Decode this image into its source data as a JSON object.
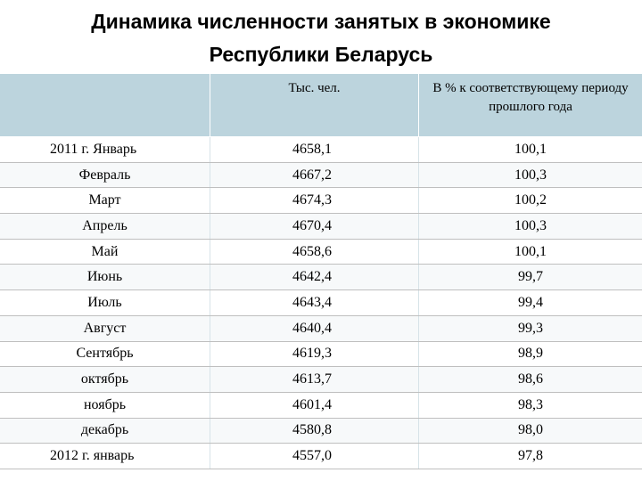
{
  "title": {
    "line1": "Динамика численности занятых в экономике",
    "line2": "Республики Беларусь"
  },
  "table": {
    "headers": {
      "period": "",
      "thousands": "Тыс. чел.",
      "percent": "В % к соответствующему периоду прошлого года"
    },
    "rows": [
      {
        "period": "2011 г.  Январь",
        "thousands": "4658,1",
        "percent": "100,1"
      },
      {
        "period": "Февраль",
        "thousands": "4667,2",
        "percent": "100,3"
      },
      {
        "period": "Март",
        "thousands": "4674,3",
        "percent": "100,2"
      },
      {
        "period": "Апрель",
        "thousands": "4670,4",
        "percent": "100,3"
      },
      {
        "period": "Май",
        "thousands": "4658,6",
        "percent": "100,1"
      },
      {
        "period": "Июнь",
        "thousands": "4642,4",
        "percent": "99,7"
      },
      {
        "period": "Июль",
        "thousands": "4643,4",
        "percent": "99,4"
      },
      {
        "period": "Август",
        "thousands": "4640,4",
        "percent": "99,3"
      },
      {
        "period": "Сентябрь",
        "thousands": "4619,3",
        "percent": "98,9"
      },
      {
        "period": "октябрь",
        "thousands": "4613,7",
        "percent": "98,6"
      },
      {
        "period": "ноябрь",
        "thousands": "4601,4",
        "percent": "98,3"
      },
      {
        "period": "декабрь",
        "thousands": "4580,8",
        "percent": "98,0"
      },
      {
        "period": "2012 г. январь",
        "thousands": "4557,0",
        "percent": "97,8"
      }
    ]
  },
  "colors": {
    "header_bg": "#bcd4dd"
  }
}
